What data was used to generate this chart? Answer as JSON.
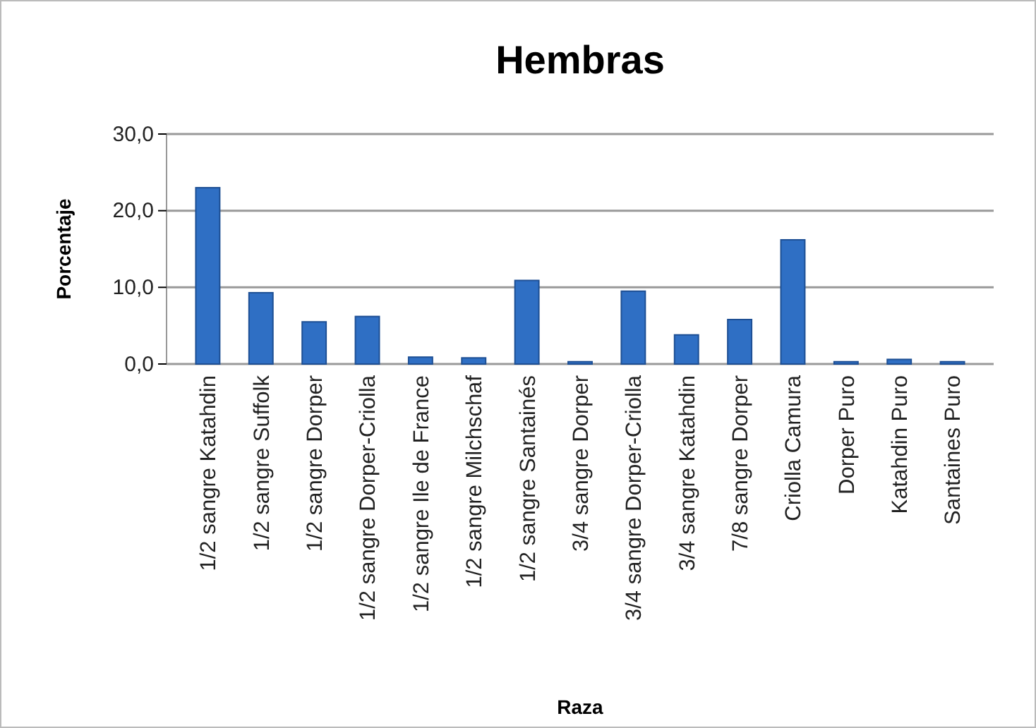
{
  "chart_data": {
    "type": "bar",
    "title": "Hembras",
    "xlabel": "Raza",
    "ylabel": "Porcentaje",
    "categories": [
      "1/2 sangre Katahdin",
      "1/2 sangre Suffolk",
      "1/2 sangre Dorper",
      "1/2 sangre Dorper-Criolla",
      "1/2 sangre Ile de France",
      "1/2 sangre Milchschaf",
      "1/2 sangre Santainés",
      "3/4 sangre Dorper",
      "3/4 sangre Dorper-Criolla",
      "3/4 sangre Katahdin",
      "7/8 sangre Dorper",
      "Criolla Camura",
      "Dorper Puro",
      "Katahdin Puro",
      "Santaines Puro"
    ],
    "values": [
      23,
      9.3,
      5.5,
      6.2,
      0.9,
      0.8,
      10.9,
      0.3,
      9.5,
      3.8,
      5.8,
      16.2,
      0.3,
      0.6,
      0.3
    ],
    "color": "#2f6fc4",
    "ylim": [
      0,
      30
    ],
    "yticks": [
      {
        "value": 0,
        "label": "0,0"
      },
      {
        "value": 10,
        "label": "10,0"
      },
      {
        "value": 20,
        "label": "20,0"
      },
      {
        "value": 30,
        "label": "30,0"
      }
    ],
    "grid": "y"
  }
}
